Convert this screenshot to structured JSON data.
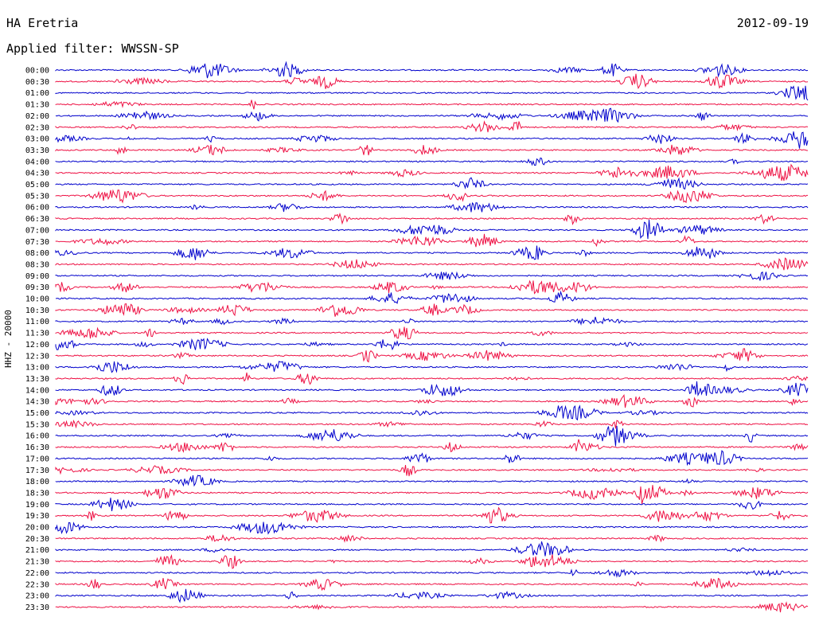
{
  "header": {
    "station": "HA Eretria",
    "date": "2012-09-19",
    "filter": "Applied filter: WWSSN-SP"
  },
  "chart_data": {
    "type": "line",
    "ylabel": "HHZ - 20000",
    "colors": [
      "#0000cc",
      "#ee1144"
    ],
    "grid": false,
    "legend": "none",
    "rows": [
      "00:00",
      "00:30",
      "01:00",
      "01:30",
      "02:00",
      "02:30",
      "03:00",
      "03:30",
      "04:00",
      "04:30",
      "05:00",
      "05:30",
      "06:00",
      "06:30",
      "07:00",
      "07:30",
      "08:00",
      "08:30",
      "09:00",
      "09:30",
      "10:00",
      "10:30",
      "11:00",
      "11:30",
      "12:00",
      "12:30",
      "13:00",
      "13:30",
      "14:00",
      "14:30",
      "15:00",
      "15:30",
      "16:00",
      "16:30",
      "17:00",
      "17:30",
      "18:00",
      "18:30",
      "19:00",
      "19:30",
      "20:00",
      "20:30",
      "21:00",
      "21:30",
      "22:00",
      "22:30",
      "23:00",
      "23:30"
    ]
  }
}
